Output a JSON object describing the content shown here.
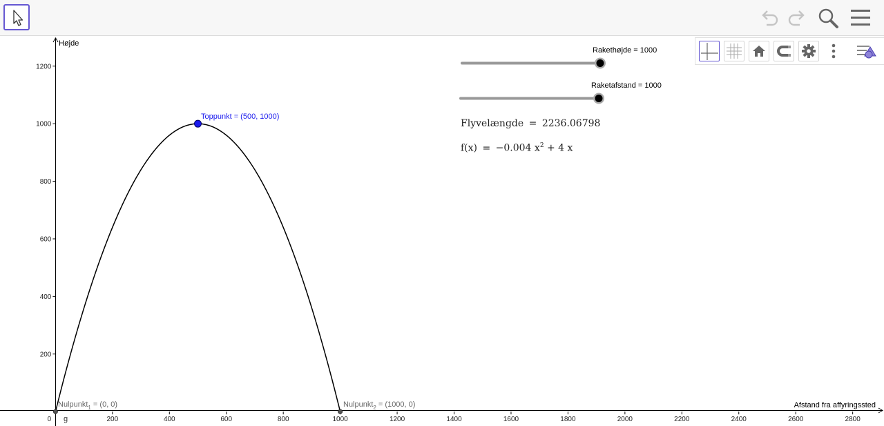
{
  "axes": {
    "x_label": "Afstand fra affyringssted",
    "y_label": "Højde",
    "x_ticks": [
      0,
      200,
      400,
      600,
      800,
      1000,
      1200,
      1400,
      1600,
      1800,
      2000,
      2200,
      2400,
      2600,
      2800
    ],
    "y_ticks": [
      200,
      400,
      600,
      800,
      1000,
      1200
    ],
    "x_range": [
      -195,
      2910
    ],
    "y_range": [
      -50,
      1305
    ]
  },
  "function": {
    "name": "g",
    "a": -0.004,
    "b": 4,
    "domain": [
      0,
      1000
    ]
  },
  "points": {
    "vertex": {
      "label": "Toppunkt = (500, 1000)",
      "x": 500,
      "y": 1000,
      "color": "#1a1aee"
    },
    "zero1": {
      "label_base": "Nulpunkt",
      "label_sub": "1",
      "label_rest": " = (0, 0)",
      "x": 0,
      "y": 0
    },
    "zero2": {
      "label_base": "Nulpunkt",
      "label_sub": "2",
      "label_rest": " = (1000, 0)",
      "x": 1000,
      "y": 0
    }
  },
  "sliders": [
    {
      "label": "Rakethøjde = 1000",
      "value": 1000,
      "min": 0,
      "max": 1000
    },
    {
      "label": "Raketafstand = 1000",
      "value": 1000,
      "min": 0,
      "max": 1000
    }
  ],
  "algebra": {
    "flight_name": "Flyvelængde",
    "eq": "=",
    "flight_value": "2236.06798",
    "f_lhs": "f(x)",
    "f_coef": "−0.004 x",
    "f_exp": "2",
    "f_rest": "+ 4 x"
  },
  "icons": [
    "move-tool-icon",
    "undo-icon",
    "redo-icon",
    "search-icon",
    "menu-icon",
    "axes-icon",
    "grid-icon",
    "home-icon",
    "magnet-icon",
    "gear-icon",
    "more-icon",
    "style-bar-icon"
  ]
}
